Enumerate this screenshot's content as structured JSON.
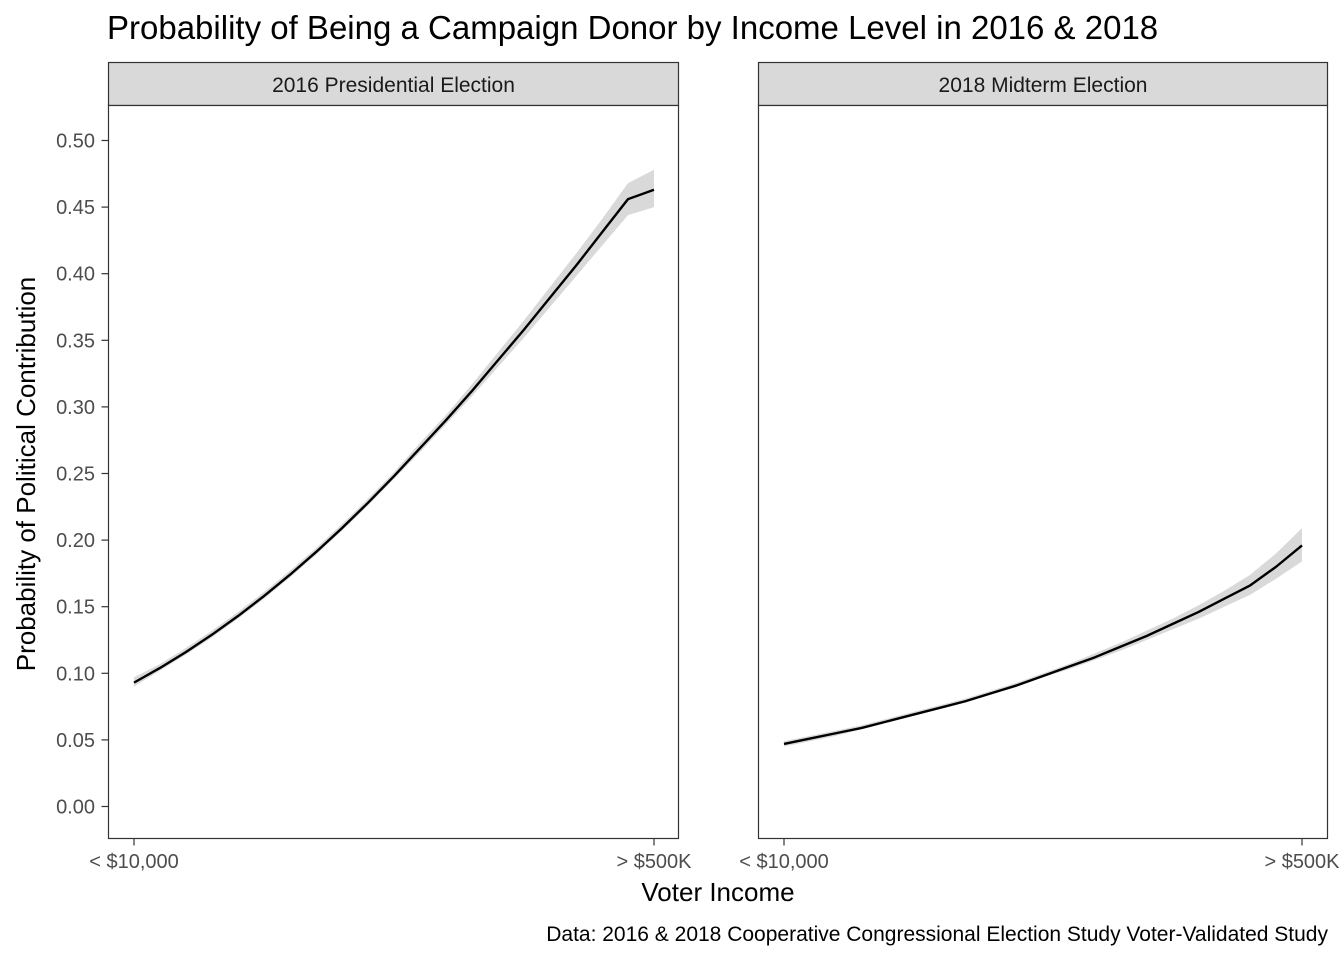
{
  "chart_data": {
    "type": "line",
    "title": "Probability of Being a Campaign Donor by Income Level in 2016 & 2018",
    "xlabel": "Voter Income",
    "ylabel": "Probability of Political Contribution",
    "caption": "Data: 2016 & 2018 Cooperative Congressional Election Study Voter-Validated Study",
    "ylim": [
      0,
      0.52
    ],
    "y_ticks": [
      0.0,
      0.05,
      0.1,
      0.15,
      0.2,
      0.25,
      0.3,
      0.35,
      0.4,
      0.45,
      0.5
    ],
    "x_tick_labels": [
      "< $10,000",
      "> $500K"
    ],
    "grid": false,
    "legend": "none",
    "line_color": "#000000",
    "band_color": "#d9d9d9",
    "strip_color": "#d9d9d9",
    "x": [
      0,
      0.05,
      0.1,
      0.15,
      0.2,
      0.25,
      0.3,
      0.35,
      0.4,
      0.45,
      0.5,
      0.55,
      0.6,
      0.65,
      0.7,
      0.75,
      0.8,
      0.85,
      0.9,
      0.95,
      1
    ],
    "panels": [
      {
        "name": "2016 Presidential Election",
        "values": [
          0.093,
          0.104,
          0.116,
          0.129,
          0.143,
          0.158,
          0.174,
          0.191,
          0.209,
          0.228,
          0.248,
          0.269,
          0.29,
          0.312,
          0.335,
          0.358,
          0.382,
          0.406,
          0.431,
          0.456,
          0.463
        ],
        "lower": [
          0.09,
          0.102,
          0.114,
          0.127,
          0.141,
          0.156,
          0.172,
          0.189,
          0.207,
          0.226,
          0.246,
          0.266,
          0.287,
          0.308,
          0.33,
          0.352,
          0.375,
          0.398,
          0.421,
          0.444,
          0.45
        ],
        "upper": [
          0.097,
          0.107,
          0.119,
          0.132,
          0.146,
          0.161,
          0.177,
          0.194,
          0.212,
          0.231,
          0.251,
          0.273,
          0.294,
          0.317,
          0.341,
          0.365,
          0.39,
          0.415,
          0.441,
          0.468,
          0.478
        ]
      },
      {
        "name": "2018 Midterm Election",
        "values": [
          0.047,
          0.051,
          0.055,
          0.059,
          0.064,
          0.069,
          0.074,
          0.079,
          0.085,
          0.091,
          0.098,
          0.105,
          0.112,
          0.12,
          0.128,
          0.137,
          0.146,
          0.156,
          0.166,
          0.18,
          0.196
        ],
        "lower": [
          0.045,
          0.049,
          0.053,
          0.058,
          0.063,
          0.068,
          0.073,
          0.078,
          0.084,
          0.09,
          0.097,
          0.103,
          0.11,
          0.117,
          0.125,
          0.133,
          0.141,
          0.15,
          0.159,
          0.171,
          0.184
        ],
        "upper": [
          0.049,
          0.053,
          0.057,
          0.061,
          0.066,
          0.071,
          0.076,
          0.081,
          0.087,
          0.093,
          0.1,
          0.107,
          0.115,
          0.123,
          0.132,
          0.141,
          0.151,
          0.162,
          0.174,
          0.19,
          0.209
        ]
      }
    ]
  }
}
